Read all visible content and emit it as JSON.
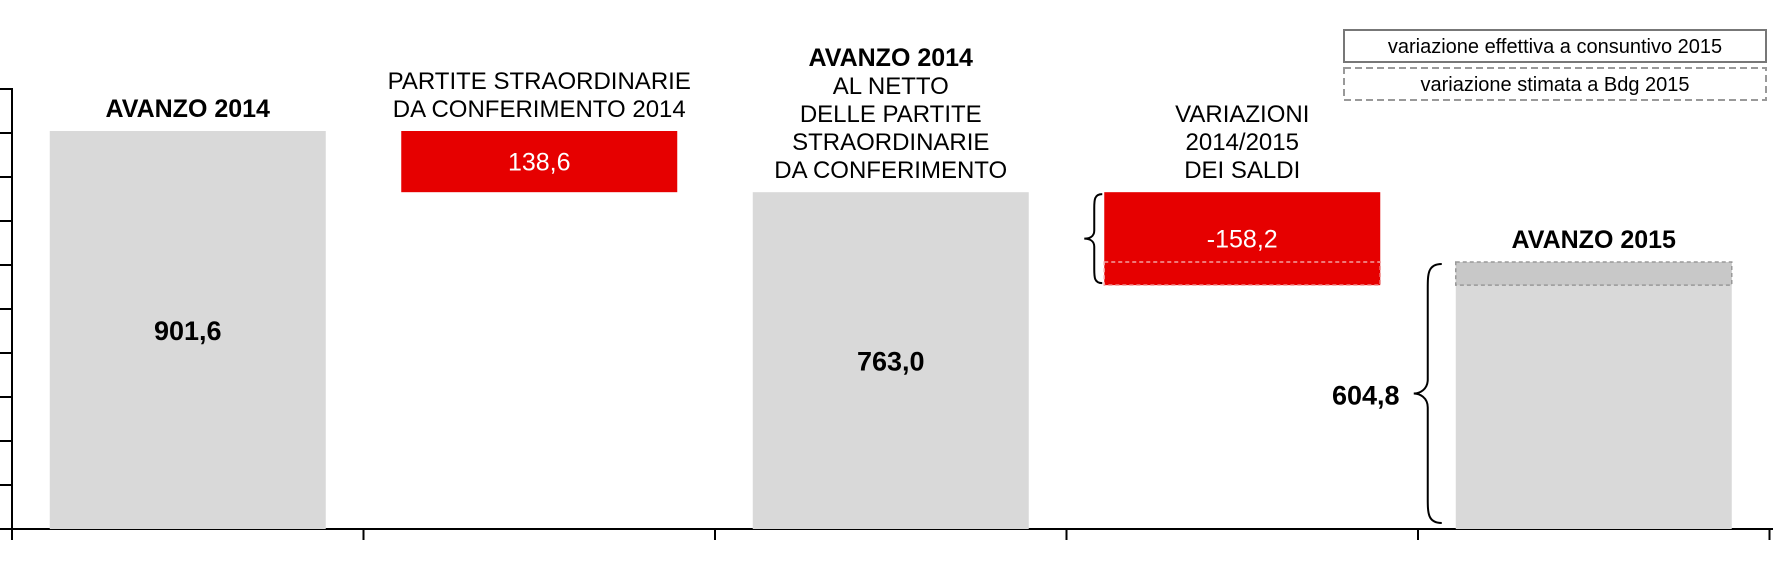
{
  "chart_data": {
    "type": "bar",
    "variant": "waterfall",
    "ylim": [
      0,
      901.6
    ],
    "grid": false,
    "legend_position": "top-right",
    "legend": [
      {
        "label": "variazione effettiva a consuntivo 2015",
        "style": "solid-border"
      },
      {
        "label": "variazione stimata a Bdg 2015",
        "style": "dashed-border"
      }
    ],
    "colors": {
      "total": "#d9d9d9",
      "change": "#e60000"
    },
    "categories": [
      {
        "title_lines": [
          "AVANZO 2014"
        ],
        "title_bold": [
          true
        ],
        "kind": "total",
        "start": 0,
        "end": 901.6,
        "label": "901,6"
      },
      {
        "title_lines": [
          "PARTITE STRAORDINARIE",
          "DA CONFERIMENTO 2014"
        ],
        "title_bold": [
          false,
          false
        ],
        "kind": "change",
        "start": 901.6,
        "end": 763.0,
        "label": "138,6"
      },
      {
        "title_lines": [
          "AVANZO 2014",
          "AL NETTO",
          "DELLE PARTITE",
          "STRAORDINARIE",
          "DA CONFERIMENTO"
        ],
        "title_bold": [
          true,
          false,
          false,
          false,
          false
        ],
        "kind": "total",
        "start": 0,
        "end": 763.0,
        "label": "763,0"
      },
      {
        "title_lines": [
          "VARIAZIONI",
          "2014/2015",
          "DEI SALDI"
        ],
        "title_bold": [
          false,
          false,
          false
        ],
        "kind": "change",
        "start": 763.0,
        "end": 604.8,
        "label": "-158,2",
        "brace": true,
        "estimated_start": 604.8,
        "estimated_end": 552.4
      },
      {
        "title_lines": [
          "AVANZO 2015"
        ],
        "title_bold": [
          true
        ],
        "kind": "total",
        "start": 0,
        "end": 604.8,
        "label": "604,8",
        "side_brace": true,
        "estimated_top": 604.8,
        "estimated_bottom": 552.4
      }
    ]
  }
}
